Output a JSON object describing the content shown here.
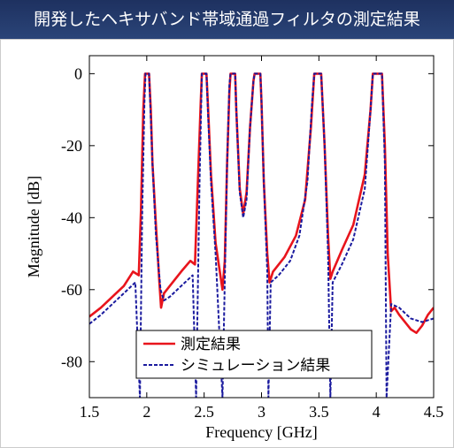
{
  "title": "開発したヘキサバンド帯域通過フィルタの測定結果",
  "chart_data": {
    "type": "line",
    "xlabel": "Frequency [GHz]",
    "ylabel": "Magnitude [dB]",
    "xlim": [
      1.5,
      4.5
    ],
    "ylim": [
      -90,
      5
    ],
    "xticks": [
      "1.5",
      "2",
      "2.5",
      "3",
      "3.5",
      "4",
      "4.5"
    ],
    "yticks": [
      "0",
      "-20",
      "-40",
      "-60",
      "-80"
    ],
    "grid": false,
    "legend_position": "bottom-left",
    "series": [
      {
        "name": "測定結果",
        "color": "#e8141c",
        "style": "solid",
        "points": [
          [
            1.5,
            -67.5
          ],
          [
            1.6,
            -65
          ],
          [
            1.7,
            -62
          ],
          [
            1.8,
            -59
          ],
          [
            1.88,
            -55
          ],
          [
            1.93,
            -56
          ],
          [
            1.95,
            -38
          ],
          [
            1.97,
            -10
          ],
          [
            1.985,
            0
          ],
          [
            2.02,
            0
          ],
          [
            2.035,
            -10
          ],
          [
            2.05,
            -25
          ],
          [
            2.08,
            -42
          ],
          [
            2.11,
            -58
          ],
          [
            2.125,
            -65
          ],
          [
            2.15,
            -61
          ],
          [
            2.2,
            -59
          ],
          [
            2.3,
            -55
          ],
          [
            2.38,
            -52
          ],
          [
            2.42,
            -53
          ],
          [
            2.44,
            -35
          ],
          [
            2.47,
            -8
          ],
          [
            2.48,
            0
          ],
          [
            2.52,
            0
          ],
          [
            2.535,
            -10
          ],
          [
            2.56,
            -28
          ],
          [
            2.6,
            -47
          ],
          [
            2.66,
            -60
          ],
          [
            2.68,
            -52
          ],
          [
            2.7,
            -25
          ],
          [
            2.72,
            -5
          ],
          [
            2.73,
            0
          ],
          [
            2.77,
            0
          ],
          [
            2.78,
            -10
          ],
          [
            2.81,
            -32
          ],
          [
            2.84,
            -39
          ],
          [
            2.87,
            -33
          ],
          [
            2.9,
            -15
          ],
          [
            2.93,
            -2
          ],
          [
            2.94,
            0
          ],
          [
            2.99,
            0
          ],
          [
            3.0,
            -8
          ],
          [
            3.02,
            -30
          ],
          [
            3.05,
            -50
          ],
          [
            3.07,
            -58
          ],
          [
            3.1,
            -55
          ],
          [
            3.2,
            -51
          ],
          [
            3.3,
            -45
          ],
          [
            3.38,
            -35
          ],
          [
            3.43,
            -15
          ],
          [
            3.46,
            0
          ],
          [
            3.52,
            0
          ],
          [
            3.55,
            -20
          ],
          [
            3.58,
            -45
          ],
          [
            3.6,
            -57
          ],
          [
            3.62,
            -55
          ],
          [
            3.7,
            -49
          ],
          [
            3.8,
            -42
          ],
          [
            3.9,
            -28
          ],
          [
            3.95,
            -10
          ],
          [
            3.97,
            0
          ],
          [
            4.05,
            0
          ],
          [
            4.075,
            -20
          ],
          [
            4.1,
            -50
          ],
          [
            4.13,
            -66
          ],
          [
            4.16,
            -65
          ],
          [
            4.2,
            -67
          ],
          [
            4.3,
            -71
          ],
          [
            4.35,
            -72
          ],
          [
            4.4,
            -70
          ],
          [
            4.45,
            -67
          ],
          [
            4.5,
            -65
          ]
        ]
      },
      {
        "name": "シミュレーション結果",
        "color": "#1a1a9e",
        "style": "dashed",
        "points": [
          [
            1.5,
            -69.5
          ],
          [
            1.6,
            -67
          ],
          [
            1.7,
            -64
          ],
          [
            1.8,
            -61
          ],
          [
            1.9,
            -58
          ],
          [
            1.94,
            -90
          ],
          [
            1.96,
            -40
          ],
          [
            1.98,
            -8
          ],
          [
            1.99,
            0
          ],
          [
            2.02,
            0
          ],
          [
            2.03,
            -8
          ],
          [
            2.05,
            -25
          ],
          [
            2.08,
            -45
          ],
          [
            2.12,
            -60
          ],
          [
            2.15,
            -63
          ],
          [
            2.2,
            -62
          ],
          [
            2.3,
            -59
          ],
          [
            2.4,
            -56
          ],
          [
            2.43,
            -90
          ],
          [
            2.46,
            -30
          ],
          [
            2.48,
            0
          ],
          [
            2.52,
            0
          ],
          [
            2.535,
            -12
          ],
          [
            2.56,
            -30
          ],
          [
            2.6,
            -50
          ],
          [
            2.66,
            -90
          ],
          [
            2.7,
            -25
          ],
          [
            2.72,
            -3
          ],
          [
            2.73,
            0
          ],
          [
            2.77,
            0
          ],
          [
            2.78,
            -10
          ],
          [
            2.81,
            -33
          ],
          [
            2.84,
            -40
          ],
          [
            2.87,
            -35
          ],
          [
            2.9,
            -15
          ],
          [
            2.93,
            -2
          ],
          [
            2.94,
            0
          ],
          [
            2.99,
            0
          ],
          [
            3.0,
            -8
          ],
          [
            3.02,
            -30
          ],
          [
            3.05,
            -55
          ],
          [
            3.06,
            -90
          ],
          [
            3.08,
            -58
          ],
          [
            3.15,
            -56
          ],
          [
            3.25,
            -52
          ],
          [
            3.33,
            -45
          ],
          [
            3.4,
            -30
          ],
          [
            3.44,
            -8
          ],
          [
            3.46,
            0
          ],
          [
            3.52,
            0
          ],
          [
            3.55,
            -20
          ],
          [
            3.58,
            -50
          ],
          [
            3.6,
            -90
          ],
          [
            3.62,
            -58
          ],
          [
            3.7,
            -53
          ],
          [
            3.8,
            -46
          ],
          [
            3.9,
            -32
          ],
          [
            3.95,
            -10
          ],
          [
            3.97,
            0
          ],
          [
            4.05,
            0
          ],
          [
            4.075,
            -25
          ],
          [
            4.09,
            -90
          ],
          [
            4.13,
            -64
          ],
          [
            4.2,
            -65
          ],
          [
            4.3,
            -68
          ],
          [
            4.4,
            -69
          ],
          [
            4.5,
            -68
          ]
        ]
      }
    ]
  }
}
